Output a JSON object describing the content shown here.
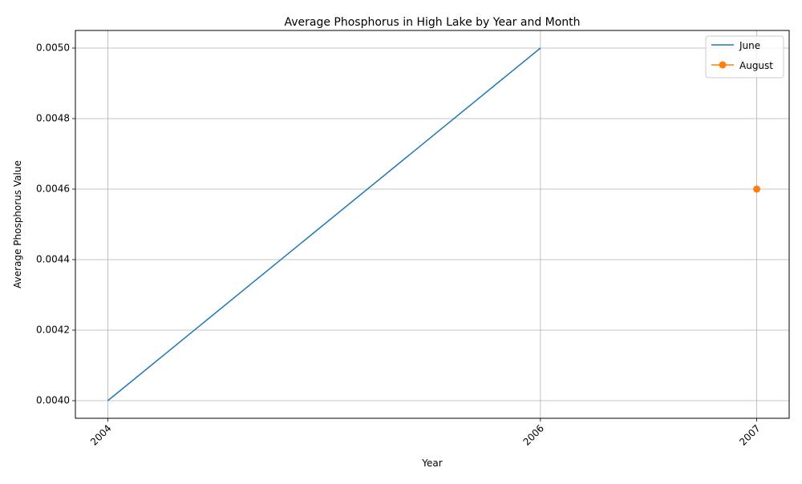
{
  "chart_data": {
    "type": "line",
    "title": "Average Phosphorus in High Lake by Year and Month",
    "xlabel": "Year",
    "ylabel": "Average Phosphorus Value",
    "x_ticks": [
      "2004",
      "2006",
      "2007"
    ],
    "y_ticks": [
      "0.0040",
      "0.0042",
      "0.0044",
      "0.0046",
      "0.0048",
      "0.0050"
    ],
    "xlim": [
      2003.85,
      2007.15
    ],
    "ylim": [
      0.00395,
      0.00505
    ],
    "grid": true,
    "legend_position": "top-right",
    "series": [
      {
        "name": "June",
        "color": "#1f77b4",
        "markers": false,
        "points": [
          {
            "x": 2004,
            "y": 0.004
          },
          {
            "x": 2006,
            "y": 0.005
          }
        ]
      },
      {
        "name": "August",
        "color": "#ff7f0e",
        "markers": true,
        "points": [
          {
            "x": 2007,
            "y": 0.0046
          }
        ]
      }
    ]
  }
}
